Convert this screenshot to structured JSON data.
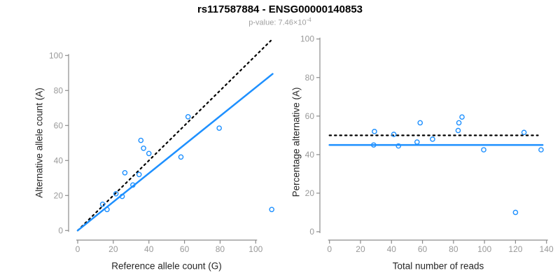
{
  "header": {
    "title": "rs117587884 - ENSG00000140853",
    "p_label": "p-value:",
    "p_mantissa": "7.46",
    "p_times": "×10",
    "p_exponent": "-4"
  },
  "colors": {
    "points": "#1E90FF",
    "fit_line": "#1E90FF",
    "identity_line": "#000000",
    "axis_line": "#8C8C8C",
    "tick_label": "#999999",
    "axis_label": "#262626",
    "title": "#000000",
    "subtitle": "#A0A0A0"
  },
  "chart_data": [
    {
      "type": "scatter",
      "panel": "allele-counts",
      "xlabel": "Reference allele count (G)",
      "ylabel": "Alternative allele count (A)",
      "xlim": [
        0,
        109
      ],
      "ylim": [
        0,
        109
      ],
      "xticks": [
        0,
        20,
        40,
        60,
        80,
        100
      ],
      "yticks": [
        0,
        20,
        40,
        60,
        80,
        100
      ],
      "point_style": "open-circle",
      "grid": false,
      "legend": "none",
      "points": [
        [
          14,
          15
        ],
        [
          16.5,
          12
        ],
        [
          21.5,
          21
        ],
        [
          25,
          19.5
        ],
        [
          26.5,
          33
        ],
        [
          31,
          26
        ],
        [
          34.5,
          32
        ],
        [
          35.5,
          51.5
        ],
        [
          37,
          47
        ],
        [
          40,
          44
        ],
        [
          58,
          42
        ],
        [
          62,
          65
        ],
        [
          79.5,
          58.5
        ],
        [
          109,
          12
        ]
      ],
      "lines": [
        {
          "name": "identity-line",
          "style": "dotted",
          "color": "#000000",
          "width": 2.2,
          "from": [
            0,
            0
          ],
          "to": [
            108.5,
            108.5
          ]
        },
        {
          "name": "fit-line",
          "style": "solid",
          "color": "#1E90FF",
          "width": 2.5,
          "from": [
            0,
            0
          ],
          "to": [
            109.5,
            89.5
          ]
        }
      ]
    },
    {
      "type": "scatter",
      "panel": "percentage-vs-coverage",
      "xlabel": "Total number of reads",
      "ylabel": "Percentage alternative (A)",
      "xlim": [
        0,
        140
      ],
      "ylim": [
        0,
        100
      ],
      "xticks": [
        0,
        20,
        40,
        60,
        80,
        100,
        120,
        140
      ],
      "yticks": [
        0,
        20,
        40,
        60,
        80,
        100
      ],
      "point_style": "open-circle",
      "grid": false,
      "legend": "none",
      "points": [
        [
          28.5,
          45
        ],
        [
          29,
          52
        ],
        [
          41.5,
          50.5
        ],
        [
          44.5,
          44.5
        ],
        [
          56.5,
          46.5
        ],
        [
          58.5,
          56.5
        ],
        [
          66.5,
          48
        ],
        [
          83,
          52.5
        ],
        [
          83.5,
          56.5
        ],
        [
          85.5,
          59.5
        ],
        [
          99.5,
          42.5
        ],
        [
          120,
          10
        ],
        [
          125.5,
          51.5
        ],
        [
          136.5,
          42.5
        ]
      ],
      "lines": [
        {
          "name": "expected-50pct-line",
          "style": "dotted",
          "color": "#000000",
          "width": 2.2,
          "from": [
            0,
            50
          ],
          "to": [
            134.5,
            50
          ]
        },
        {
          "name": "observed-ratio-line",
          "style": "solid",
          "color": "#1E90FF",
          "width": 2.5,
          "from": [
            0,
            45
          ],
          "to": [
            137.5,
            45
          ]
        }
      ]
    }
  ]
}
